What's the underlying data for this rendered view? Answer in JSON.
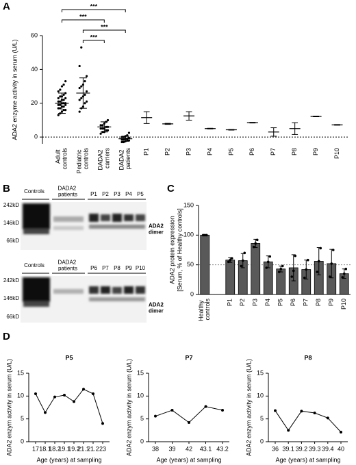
{
  "panel_labels": [
    "A",
    "B",
    "C",
    "D"
  ],
  "blot": {
    "top": {
      "groups": [
        "Controls",
        "DADA2 patients"
      ],
      "lanes": [
        "P1",
        "P2",
        "P3",
        "P4",
        "P5"
      ],
      "markers": [
        "242kD",
        "146kD",
        "66kD"
      ],
      "band_label": "ADA2 dimer"
    },
    "bottom": {
      "groups": [
        "Controls",
        "DADA2 patients"
      ],
      "lanes": [
        "P6",
        "P7",
        "P8",
        "P9",
        "P10"
      ],
      "markers": [
        "242kD",
        "146kD",
        "66kD"
      ],
      "band_label": "ADA2 dimer"
    }
  },
  "chart_data": [
    {
      "type": "dot",
      "ylabel": "ADA2 enzyme activity in serum (U/L)",
      "categories": [
        "Adult controls",
        "Pediatric controls",
        "DADA2 carriers",
        "DADA2 patients",
        "P1",
        "P2",
        "P3",
        "P4",
        "P5",
        "P6",
        "P7",
        "P8",
        "P9",
        "P10"
      ],
      "values": [
        20,
        26,
        6,
        -1,
        11.5,
        7.8,
        12.5,
        5,
        4.3,
        8.5,
        3,
        5,
        12.2,
        7.2
      ],
      "errors": [
        6,
        9,
        3,
        1.5,
        3.5,
        0.3,
        2.5,
        0.2,
        0.2,
        0.2,
        2.5,
        3.5,
        0.2,
        0.2
      ],
      "points": [
        [
          13,
          14,
          15,
          16,
          16,
          17,
          17,
          18,
          18,
          19,
          19,
          19,
          20,
          20,
          20,
          21,
          21,
          22,
          22,
          23,
          23,
          24,
          24,
          25,
          26,
          27,
          28,
          30,
          31,
          33
        ],
        [
          15,
          17,
          18,
          20,
          21,
          22,
          23,
          24,
          25,
          27,
          29,
          30,
          31,
          33,
          36,
          42,
          53
        ],
        [
          2,
          3,
          3,
          4,
          4,
          5,
          5,
          5,
          6,
          6,
          7,
          7,
          8,
          9,
          10
        ],
        [
          -3,
          -3,
          -2.5,
          -2,
          -2,
          -1.5,
          -1.5,
          -1,
          -1,
          -0.5,
          0,
          0,
          0.5,
          1,
          2.5
        ],
        null,
        null,
        null,
        null,
        null,
        null,
        null,
        null,
        null,
        null
      ],
      "ylim": [
        -4,
        60
      ],
      "yticks": [
        0,
        20,
        40,
        60
      ],
      "reference_line": 0,
      "annotations": [
        {
          "label": "***",
          "categories": [
            "Adult controls",
            "DADA2 patients"
          ]
        },
        {
          "label": "***",
          "categories": [
            "Adult controls",
            "DADA2 carriers"
          ]
        },
        {
          "label": "***",
          "categories": [
            "Pediatric controls",
            "DADA2 patients"
          ]
        },
        {
          "label": "***",
          "categories": [
            "Pediatric controls",
            "DADA2 carriers"
          ]
        }
      ],
      "color": "#000000"
    },
    {
      "type": "bar",
      "ylabel": [
        "ADA2 protein expression",
        "[Serum, % of Healthy controls]"
      ],
      "categories": [
        "Healthy controls",
        null,
        "P1",
        "P2",
        "P3",
        "P4",
        "P5",
        "P6",
        "P7",
        "P8",
        "P9",
        "P10"
      ],
      "values": [
        100,
        null,
        58,
        57,
        86,
        55,
        43,
        45,
        42,
        56,
        52,
        35
      ],
      "errors": [
        0,
        null,
        4,
        12,
        7,
        10,
        5,
        22,
        16,
        23,
        24,
        8
      ],
      "points": [
        [
          100,
          100,
          100
        ],
        null,
        [
          55,
          58,
          61
        ],
        [
          48,
          57,
          70
        ],
        [
          80,
          86,
          92
        ],
        [
          45,
          55,
          64
        ],
        [
          38,
          43,
          48
        ],
        [
          30,
          40,
          65
        ],
        [
          28,
          42,
          58
        ],
        [
          38,
          56,
          78
        ],
        [
          30,
          52,
          75
        ],
        [
          29,
          35,
          43
        ]
      ],
      "ylim": [
        0,
        150
      ],
      "yticks": [
        0,
        50,
        100,
        150
      ],
      "reference_line": 50,
      "color": "#595959"
    },
    {
      "type": "line",
      "title": "P5",
      "ylabel": "ADA2 enzym activity in serum (U/L)",
      "xlabel": "Age (years) at sampling",
      "categories": [
        "17",
        "18.1",
        "18.2",
        "19.1",
        "19.2",
        "21.1",
        "21.2",
        "23"
      ],
      "values": [
        10.5,
        6.4,
        9.8,
        10.2,
        8.8,
        11.5,
        10.5,
        4.0
      ],
      "ylim": [
        0,
        15
      ],
      "yticks": [
        0,
        5,
        10,
        15
      ],
      "color": "#000000"
    },
    {
      "type": "line",
      "title": "P7",
      "ylabel": "ADA2 enzym activity in serum (U/L)",
      "xlabel": "Age (years) at sampling",
      "categories": [
        "38",
        "39",
        "42",
        "43.1",
        "43.2"
      ],
      "values": [
        5.6,
        6.9,
        4.2,
        7.7,
        6.9
      ],
      "ylim": [
        0,
        15
      ],
      "yticks": [
        0,
        5,
        10,
        15
      ],
      "color": "#000000"
    },
    {
      "type": "line",
      "title": "P8",
      "ylabel": "ADA2 enzym activity in serum (U/L)",
      "xlabel": "Age (years) at sampling",
      "categories": [
        "36",
        "39.1",
        "39.2",
        "39.3",
        "39.4",
        "40"
      ],
      "values": [
        6.8,
        2.5,
        6.7,
        6.3,
        5.2,
        2.1
      ],
      "ylim": [
        0,
        15
      ],
      "yticks": [
        0,
        5,
        10,
        15
      ],
      "color": "#000000"
    }
  ]
}
